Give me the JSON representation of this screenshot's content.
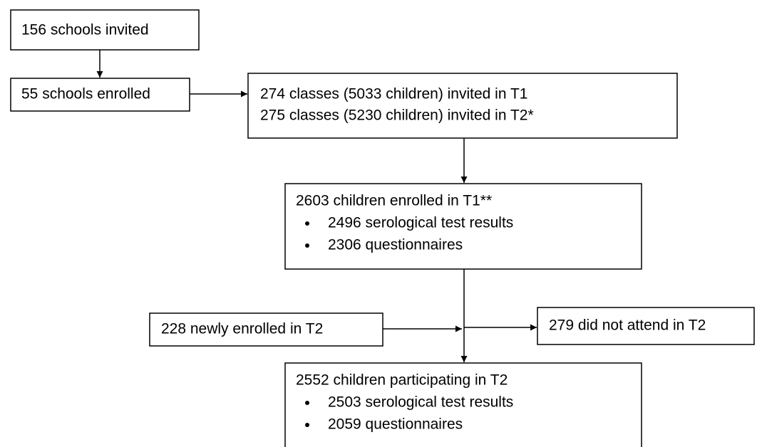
{
  "nodes": [
    {
      "label": "156 schools invited"
    },
    {
      "label": "55 schools enrolled"
    },
    {
      "lines": [
        "274 classes (5033 children) invited in T1",
        "275 classes (5230 children) invited in T2*"
      ]
    },
    {
      "title": "2603 children enrolled in T1**",
      "items": [
        "2496 serological test results",
        "2306 questionnaires"
      ]
    },
    {
      "label": "228 newly enrolled in T2"
    },
    {
      "label": "279 did not attend in T2"
    },
    {
      "title": "2552 children participating in T2",
      "items": [
        "2503 serological test results",
        "2059 questionnaires"
      ]
    }
  ]
}
